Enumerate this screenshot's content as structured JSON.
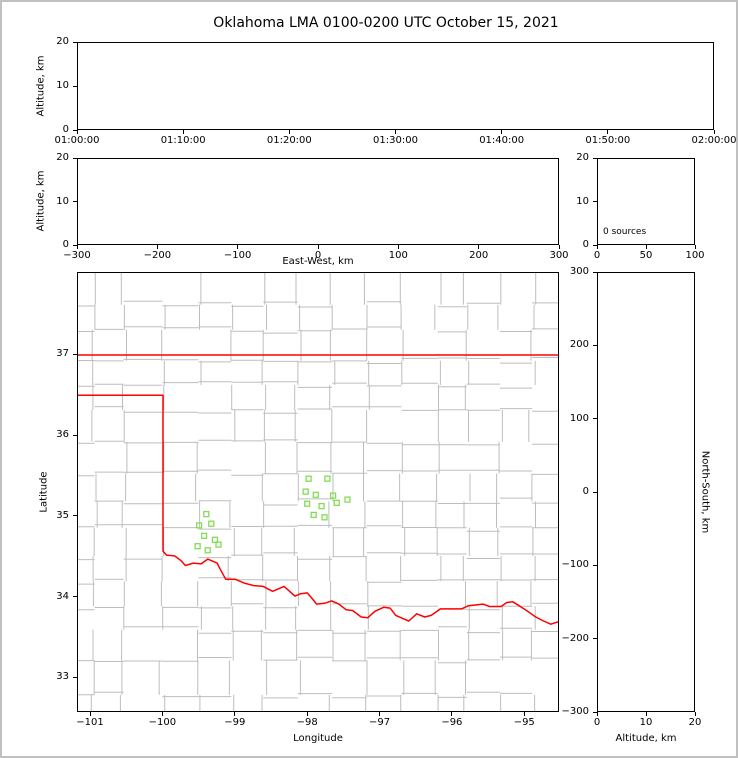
{
  "title": "Oklahoma LMA 0100-0200 UTC October 15, 2021",
  "colors": {
    "state_boundary": "#ff0000",
    "county_lines": "#bdbdbd",
    "station_marker": "#82dd55",
    "axis": "#000000"
  },
  "chart_data": [
    {
      "id": "time_height",
      "type": "scatter",
      "ylabel": "Altitude, km",
      "xticks": [
        "01:00:00",
        "01:10:00",
        "01:20:00",
        "01:30:00",
        "01:40:00",
        "01:50:00",
        "02:00:00"
      ],
      "yticks": [
        0,
        10,
        20
      ],
      "ylim": [
        0,
        20
      ],
      "points": []
    },
    {
      "id": "ew_height",
      "type": "scatter",
      "xlabel": "East-West, km",
      "ylabel": "Altitude, km",
      "xticks": [
        -300,
        -200,
        -100,
        0,
        100,
        200,
        300
      ],
      "xlim": [
        -300,
        300
      ],
      "yticks": [
        0,
        10,
        20
      ],
      "ylim": [
        0,
        20
      ],
      "points": []
    },
    {
      "id": "altitude_histogram",
      "type": "line",
      "annotation": "0 sources",
      "xticks": [
        0,
        50,
        100
      ],
      "xlim": [
        0,
        100
      ],
      "yticks": [
        0,
        10,
        20
      ],
      "ylim": [
        0,
        20
      ],
      "points": []
    },
    {
      "id": "plan_view",
      "type": "scatter",
      "xlabel": "Longitude",
      "ylabel": "Latitude",
      "xticks": [
        -101,
        -100,
        -99,
        -98,
        -97,
        -96,
        -95
      ],
      "xlim": [
        -101.18,
        -94.52
      ],
      "yticks": [
        33,
        34,
        35,
        36,
        37
      ],
      "ylim": [
        32.57,
        38.02
      ],
      "stations": [
        [
          -99.4,
          35.02
        ],
        [
          -99.5,
          34.88
        ],
        [
          -99.33,
          34.9
        ],
        [
          -99.43,
          34.75
        ],
        [
          -99.28,
          34.7
        ],
        [
          -99.52,
          34.62
        ],
        [
          -99.38,
          34.57
        ],
        [
          -99.23,
          34.64
        ],
        [
          -97.98,
          35.46
        ],
        [
          -97.72,
          35.46
        ],
        [
          -98.02,
          35.3
        ],
        [
          -97.88,
          35.26
        ],
        [
          -97.64,
          35.25
        ],
        [
          -98.0,
          35.15
        ],
        [
          -97.8,
          35.12
        ],
        [
          -97.59,
          35.16
        ],
        [
          -97.44,
          35.2
        ],
        [
          -97.91,
          35.01
        ],
        [
          -97.76,
          34.98
        ]
      ],
      "state_boundary": [
        [
          [
            -101.18,
            37.0
          ],
          [
            -94.52,
            37.0
          ]
        ],
        [
          [
            -101.18,
            36.5
          ],
          [
            -100.0,
            36.5
          ],
          [
            -100.0,
            34.56
          ],
          [
            -99.95,
            34.51
          ],
          [
            -99.84,
            34.5
          ],
          [
            -99.75,
            34.44
          ],
          [
            -99.69,
            34.38
          ],
          [
            -99.58,
            34.41
          ],
          [
            -99.47,
            34.4
          ],
          [
            -99.38,
            34.46
          ],
          [
            -99.25,
            34.41
          ],
          [
            -99.21,
            34.34
          ],
          [
            -99.13,
            34.21
          ],
          [
            -99.0,
            34.21
          ],
          [
            -98.87,
            34.16
          ],
          [
            -98.74,
            34.13
          ],
          [
            -98.61,
            34.12
          ],
          [
            -98.48,
            34.06
          ],
          [
            -98.4,
            34.09
          ],
          [
            -98.32,
            34.12
          ],
          [
            -98.17,
            34.0
          ],
          [
            -98.09,
            34.03
          ],
          [
            -98.0,
            34.04
          ],
          [
            -97.95,
            33.99
          ],
          [
            -97.87,
            33.9
          ],
          [
            -97.76,
            33.91
          ],
          [
            -97.66,
            33.94
          ],
          [
            -97.56,
            33.9
          ],
          [
            -97.46,
            33.83
          ],
          [
            -97.37,
            33.82
          ],
          [
            -97.25,
            33.74
          ],
          [
            -97.16,
            33.73
          ],
          [
            -97.06,
            33.81
          ],
          [
            -96.94,
            33.86
          ],
          [
            -96.85,
            33.85
          ],
          [
            -96.77,
            33.76
          ],
          [
            -96.67,
            33.72
          ],
          [
            -96.59,
            33.69
          ],
          [
            -96.48,
            33.78
          ],
          [
            -96.37,
            33.74
          ],
          [
            -96.28,
            33.76
          ],
          [
            -96.15,
            33.84
          ],
          [
            -96.0,
            33.84
          ],
          [
            -95.86,
            33.84
          ],
          [
            -95.76,
            33.88
          ],
          [
            -95.56,
            33.9
          ],
          [
            -95.47,
            33.87
          ],
          [
            -95.31,
            33.87
          ],
          [
            -95.23,
            33.92
          ],
          [
            -95.15,
            33.93
          ],
          [
            -95.06,
            33.88
          ],
          [
            -94.94,
            33.81
          ],
          [
            -94.83,
            33.74
          ],
          [
            -94.72,
            33.69
          ],
          [
            -94.62,
            33.65
          ],
          [
            -94.52,
            33.68
          ]
        ]
      ]
    },
    {
      "id": "ns_height",
      "type": "scatter",
      "xlabel": "Altitude, km",
      "ylabel": "North-South, km",
      "xticks": [
        0,
        10,
        20
      ],
      "xlim": [
        0,
        20
      ],
      "yticks": [
        300,
        200,
        100,
        0,
        -100,
        -200,
        -300
      ],
      "ylim": [
        -300,
        300
      ],
      "points": []
    }
  ]
}
